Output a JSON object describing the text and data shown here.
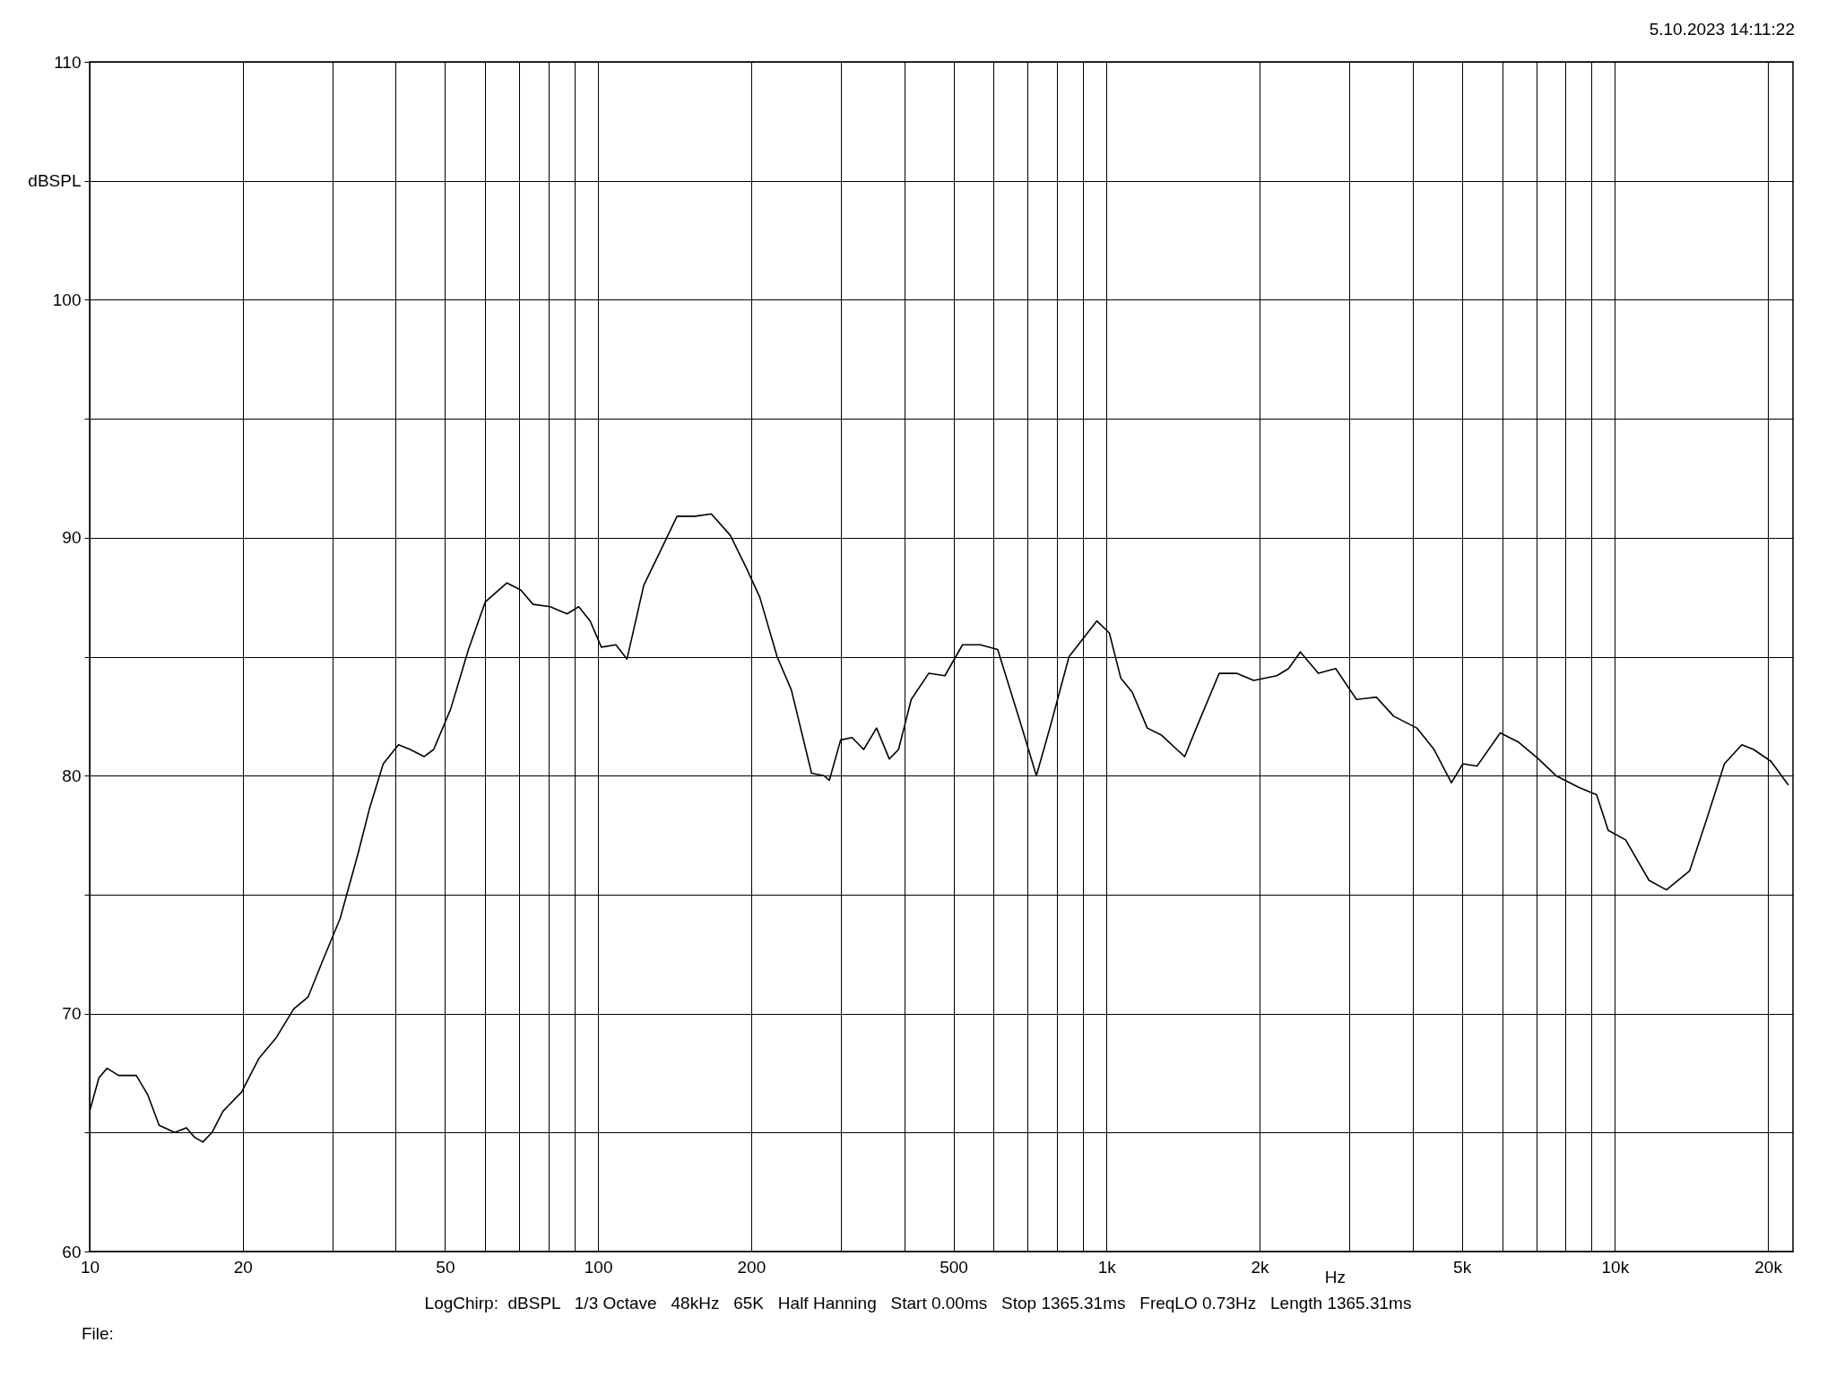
{
  "chart_data": {
    "type": "line",
    "xlabel": "Hz",
    "ylabel": "dBSPL",
    "annotations": [
      "5.10.2023 14:11:22",
      "LogChirp:  dBSPL   1/3 Octave   48kHz   65K   Half Hanning   Start 0.00ms   Stop 1365.31ms   FreqLO 0.73Hz   Length 1365.31ms",
      "File:"
    ],
    "log": "x",
    "grid": true,
    "xlim": [
      10,
      22400
    ],
    "ylim": [
      60,
      110
    ],
    "xticks": [
      10,
      20,
      {
        "value": 30,
        "label": null
      },
      {
        "value": 40,
        "label": null
      },
      50,
      {
        "value": 60,
        "label": null
      },
      {
        "value": 70,
        "label": null
      },
      {
        "value": 80,
        "label": null
      },
      {
        "value": 90,
        "label": null
      },
      100,
      200,
      {
        "value": 300,
        "label": null
      },
      {
        "value": 400,
        "label": null
      },
      500,
      {
        "value": 600,
        "label": null
      },
      {
        "value": 700,
        "label": null
      },
      {
        "value": 800,
        "label": null
      },
      {
        "value": 900,
        "label": null
      },
      {
        "value": 1000,
        "label": "1k"
      },
      {
        "value": 2000,
        "label": "2k"
      },
      {
        "value": 3000,
        "label": null
      },
      {
        "value": 4000,
        "label": null
      },
      {
        "value": 5000,
        "label": "5k"
      },
      {
        "value": 6000,
        "label": null
      },
      {
        "value": 7000,
        "label": null
      },
      {
        "value": 8000,
        "label": null
      },
      {
        "value": 9000,
        "label": null
      },
      {
        "value": 10000,
        "label": "10k"
      },
      {
        "value": 20000,
        "label": "20k"
      }
    ],
    "yticks": [
      60,
      {
        "value": 65,
        "label": null
      },
      70,
      {
        "value": 75,
        "label": null
      },
      80,
      {
        "value": 85,
        "label": null
      },
      90,
      {
        "value": 95,
        "label": null
      },
      100,
      {
        "value": 105,
        "label": null
      },
      110
    ],
    "series": [
      {
        "color": "#000000",
        "x": [
          10,
          10.43,
          10.82,
          11.4,
          12.35,
          13.0,
          13.7,
          14.7,
          15.5,
          16.08,
          16.7,
          17.4,
          18.3,
          19.9,
          21.5,
          23.3,
          25.2,
          26.9,
          28.7,
          31.1,
          33.7,
          35.5,
          37.8,
          40.5,
          42.7,
          45.5,
          47.5,
          51.3,
          55.6,
          60.0,
          66.2,
          70.5,
          74.5,
          80.5,
          86.9,
          91.6,
          96.5,
          101.5,
          108.4,
          114,
          123,
          133,
          143,
          155,
          167,
          182,
          195,
          208,
          225,
          240,
          263,
          278,
          285,
          300,
          316,
          333,
          353,
          374,
          390,
          413,
          447,
          481,
          521,
          565,
          611,
          680,
          728,
          776,
          844,
          957,
          1013,
          1067,
          1124,
          1203,
          1283,
          1425,
          1502,
          1666,
          1803,
          1948,
          2163,
          2281,
          2406,
          2610,
          2824,
          3103,
          3394,
          3671,
          4078,
          4409,
          4769,
          5025,
          5355,
          5950,
          6471,
          7077,
          7658,
          8506,
          9204,
          9703,
          10500,
          11670,
          12630,
          14030,
          15170,
          16420,
          17770,
          18740,
          20280,
          21940
        ],
        "values": [
          65.9,
          67.3,
          67.7,
          67.4,
          67.4,
          66.6,
          65.3,
          65.0,
          65.2,
          64.8,
          64.6,
          65.0,
          65.9,
          66.7,
          68.1,
          69.0,
          70.2,
          70.7,
          72.2,
          74.0,
          76.7,
          78.6,
          80.5,
          81.3,
          81.1,
          80.8,
          81.1,
          82.8,
          85.3,
          87.3,
          88.1,
          87.8,
          87.2,
          87.1,
          86.8,
          87.1,
          86.5,
          85.4,
          85.5,
          84.9,
          88.0,
          89.5,
          90.9,
          90.9,
          91.0,
          90.1,
          88.8,
          87.5,
          85.0,
          83.6,
          80.1,
          80.0,
          79.8,
          81.5,
          81.6,
          81.1,
          82.0,
          80.7,
          81.1,
          83.2,
          84.3,
          84.2,
          85.5,
          85.5,
          85.3,
          82.1,
          80.0,
          82.1,
          85.0,
          86.5,
          86.0,
          84.1,
          83.5,
          82.0,
          81.7,
          80.8,
          82.0,
          84.3,
          84.3,
          84.0,
          84.2,
          84.5,
          85.2,
          84.3,
          84.5,
          83.2,
          83.3,
          82.5,
          82.0,
          81.1,
          79.7,
          80.5,
          80.4,
          81.8,
          81.4,
          80.7,
          80.0,
          79.5,
          79.2,
          77.7,
          77.3,
          75.6,
          75.2,
          76.0,
          78.2,
          80.5,
          81.3,
          81.1,
          80.6,
          79.6
        ]
      }
    ]
  }
}
